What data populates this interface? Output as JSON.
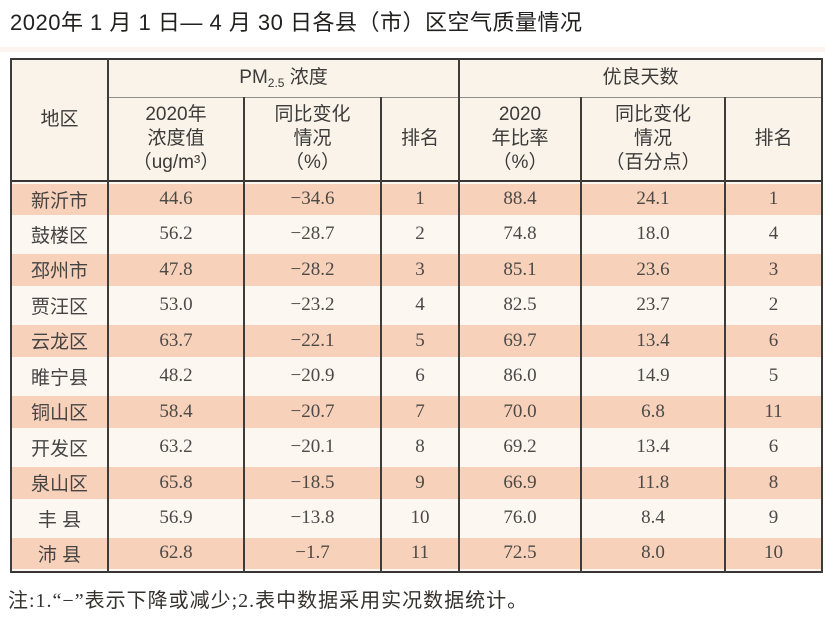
{
  "page": {
    "title": "2020年 1 月 1 日— 4 月 30 日各县（市）区空气质量情况",
    "footnote": "注:1.“−”表示下降或减少;2.表中数据采用实况数据统计。"
  },
  "colors": {
    "stripe_salmon": "#f8d1bb",
    "stripe_light": "#fdf7f2",
    "header_cream": "#faf3e9",
    "grid_border": "#3e3c39"
  },
  "table": {
    "header": {
      "region": "地区",
      "pm25_base": "PM",
      "pm25_sub": "2.5",
      "pm25_rest": " 浓度",
      "good_days": "优良天数"
    },
    "subheader": {
      "pm_value": "2020年\n浓度值\n（ug/m³）",
      "pm_change": "同比变化\n情况\n（%）",
      "pm_rank": "排名",
      "good_ratio": "2020\n年比率\n（%）",
      "good_change": "同比变化\n情况\n（百分点）",
      "good_rank": "排名"
    },
    "columns": [
      "region",
      "pm_value",
      "pm_change",
      "pm_rank",
      "good_ratio",
      "good_change",
      "good_rank"
    ],
    "rows": [
      {
        "region": "新沂市",
        "pm_value": "44.6",
        "pm_change": "−34.6",
        "pm_rank": "1",
        "good_ratio": "88.4",
        "good_change": "24.1",
        "good_rank": "1"
      },
      {
        "region": "鼓楼区",
        "pm_value": "56.2",
        "pm_change": "−28.7",
        "pm_rank": "2",
        "good_ratio": "74.8",
        "good_change": "18.0",
        "good_rank": "4"
      },
      {
        "region": "邳州市",
        "pm_value": "47.8",
        "pm_change": "−28.2",
        "pm_rank": "3",
        "good_ratio": "85.1",
        "good_change": "23.6",
        "good_rank": "3"
      },
      {
        "region": "贾汪区",
        "pm_value": "53.0",
        "pm_change": "−23.2",
        "pm_rank": "4",
        "good_ratio": "82.5",
        "good_change": "23.7",
        "good_rank": "2"
      },
      {
        "region": "云龙区",
        "pm_value": "63.7",
        "pm_change": "−22.1",
        "pm_rank": "5",
        "good_ratio": "69.7",
        "good_change": "13.4",
        "good_rank": "6"
      },
      {
        "region": "睢宁县",
        "pm_value": "48.2",
        "pm_change": "−20.9",
        "pm_rank": "6",
        "good_ratio": "86.0",
        "good_change": "14.9",
        "good_rank": "5"
      },
      {
        "region": "铜山区",
        "pm_value": "58.4",
        "pm_change": "−20.7",
        "pm_rank": "7",
        "good_ratio": "70.0",
        "good_change": "6.8",
        "good_rank": "11"
      },
      {
        "region": "开发区",
        "pm_value": "63.2",
        "pm_change": "−20.1",
        "pm_rank": "8",
        "good_ratio": "69.2",
        "good_change": "13.4",
        "good_rank": "6"
      },
      {
        "region": "泉山区",
        "pm_value": "65.8",
        "pm_change": "−18.5",
        "pm_rank": "9",
        "good_ratio": "66.9",
        "good_change": "11.8",
        "good_rank": "8"
      },
      {
        "region": "丰 县",
        "pm_value": "56.9",
        "pm_change": "−13.8",
        "pm_rank": "10",
        "good_ratio": "76.0",
        "good_change": "8.4",
        "good_rank": "9"
      },
      {
        "region": "沛 县",
        "pm_value": "62.8",
        "pm_change": "−1.7",
        "pm_rank": "11",
        "good_ratio": "72.5",
        "good_change": "8.0",
        "good_rank": "10"
      }
    ]
  }
}
